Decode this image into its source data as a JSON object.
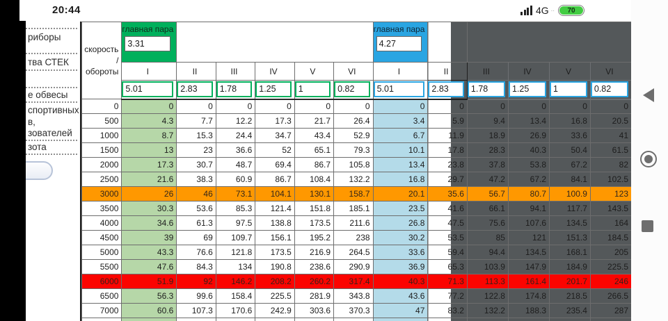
{
  "status_bar": {
    "time": "20:44",
    "network_label": "4G",
    "network_extra": "··",
    "battery_level": "70"
  },
  "sidebar": {
    "items": [
      {
        "label": "риборы"
      },
      {
        "label": "тва СТЕК"
      },
      {
        "label": "е обвесы"
      },
      {
        "label": "спортивных\nв,\nзователей"
      },
      {
        "label": "зота"
      }
    ]
  },
  "table": {
    "corner_label_lines": [
      "скорость",
      "/",
      "обороты"
    ],
    "gear_headers": [
      "I",
      "II",
      "III",
      "IV",
      "V",
      "VI"
    ],
    "blocks": [
      {
        "id": "green",
        "main_pair_label": "главная пара",
        "main_pair_value": "3.31",
        "ratios": [
          "5.01",
          "2.83",
          "1.78",
          "1.25",
          "1",
          "0.82"
        ]
      },
      {
        "id": "blue",
        "main_pair_label": "главная пара",
        "main_pair_value": "4.27",
        "ratios": [
          "5.01",
          "2.83",
          "1.78",
          "1.25",
          "1",
          "0.82"
        ]
      }
    ],
    "rows": [
      {
        "rpm": "0",
        "left": [
          "0",
          "0",
          "0",
          "0",
          "0",
          "0"
        ],
        "right": [
          "0",
          "0",
          "0",
          "0",
          "0",
          "0"
        ]
      },
      {
        "rpm": "500",
        "left": [
          "4.3",
          "7.7",
          "12.2",
          "17.3",
          "21.7",
          "26.4"
        ],
        "right": [
          "3.4",
          "5.9",
          "9.4",
          "13.4",
          "16.8",
          "20.5"
        ]
      },
      {
        "rpm": "1000",
        "left": [
          "8.7",
          "15.3",
          "24.4",
          "34.7",
          "43.4",
          "52.9"
        ],
        "right": [
          "6.7",
          "11.9",
          "18.9",
          "26.9",
          "33.6",
          "41"
        ]
      },
      {
        "rpm": "1500",
        "left": [
          "13",
          "23",
          "36.6",
          "52",
          "65.1",
          "79.3"
        ],
        "right": [
          "10.1",
          "17.8",
          "28.3",
          "40.3",
          "50.4",
          "61.5"
        ]
      },
      {
        "rpm": "2000",
        "left": [
          "17.3",
          "30.7",
          "48.7",
          "69.4",
          "86.7",
          "105.8"
        ],
        "right": [
          "13.4",
          "23.8",
          "37.8",
          "53.8",
          "67.2",
          "82"
        ]
      },
      {
        "rpm": "2500",
        "left": [
          "21.6",
          "38.3",
          "60.9",
          "86.7",
          "108.4",
          "132.2"
        ],
        "right": [
          "16.8",
          "29.7",
          "47.2",
          "67.2",
          "84.1",
          "102.5"
        ]
      },
      {
        "rpm": "3000",
        "highlight": "orange",
        "left": [
          "26",
          "46",
          "73.1",
          "104.1",
          "130.1",
          "158.7"
        ],
        "right": [
          "20.1",
          "35.6",
          "56.7",
          "80.7",
          "100.9",
          "123"
        ]
      },
      {
        "rpm": "3500",
        "left": [
          "30.3",
          "53.6",
          "85.3",
          "121.4",
          "151.8",
          "185.1"
        ],
        "right": [
          "23.5",
          "41.6",
          "66.1",
          "94.1",
          "117.7",
          "143.5"
        ]
      },
      {
        "rpm": "4000",
        "left": [
          "34.6",
          "61.3",
          "97.5",
          "138.8",
          "173.5",
          "211.6"
        ],
        "right": [
          "26.8",
          "47.5",
          "75.6",
          "107.6",
          "134.5",
          "164"
        ]
      },
      {
        "rpm": "4500",
        "left": [
          "39",
          "69",
          "109.7",
          "156.1",
          "195.2",
          "238"
        ],
        "right": [
          "30.2",
          "53.5",
          "85",
          "121",
          "151.3",
          "184.5"
        ]
      },
      {
        "rpm": "5000",
        "left": [
          "43.3",
          "76.6",
          "121.8",
          "173.5",
          "216.9",
          "264.5"
        ],
        "right": [
          "33.6",
          "59.4",
          "94.4",
          "134.5",
          "168.1",
          "205"
        ]
      },
      {
        "rpm": "5500",
        "left": [
          "47.6",
          "84.3",
          "134",
          "190.8",
          "238.6",
          "290.9"
        ],
        "right": [
          "36.9",
          "65.3",
          "103.9",
          "147.9",
          "184.9",
          "225.5"
        ]
      },
      {
        "rpm": "6000",
        "highlight": "red",
        "left": [
          "51.9",
          "92",
          "146.2",
          "208.2",
          "260.2",
          "317.4"
        ],
        "right": [
          "40.3",
          "71.3",
          "113.3",
          "161.4",
          "201.7",
          "246"
        ]
      },
      {
        "rpm": "6500",
        "left": [
          "56.3",
          "99.6",
          "158.4",
          "225.5",
          "281.9",
          "343.8"
        ],
        "right": [
          "43.6",
          "77.2",
          "122.8",
          "174.8",
          "218.5",
          "266.5"
        ]
      },
      {
        "rpm": "7000",
        "left": [
          "60.6",
          "107.3",
          "170.6",
          "242.9",
          "303.6",
          "370.3"
        ],
        "right": [
          "47",
          "83.2",
          "132.2",
          "188.3",
          "235.4",
          "287"
        ]
      }
    ]
  },
  "nav_bar": {
    "back_icon": "back",
    "home_icon": "home",
    "recents_icon": "recents"
  },
  "colors": {
    "green": "#00b05c",
    "light_green": "#b6d7a8",
    "blue": "#2aa5e2",
    "light_blue": "#b4dbe9",
    "orange": "#ff9800",
    "red": "#fb0400",
    "dark_panel": "#54585a"
  }
}
